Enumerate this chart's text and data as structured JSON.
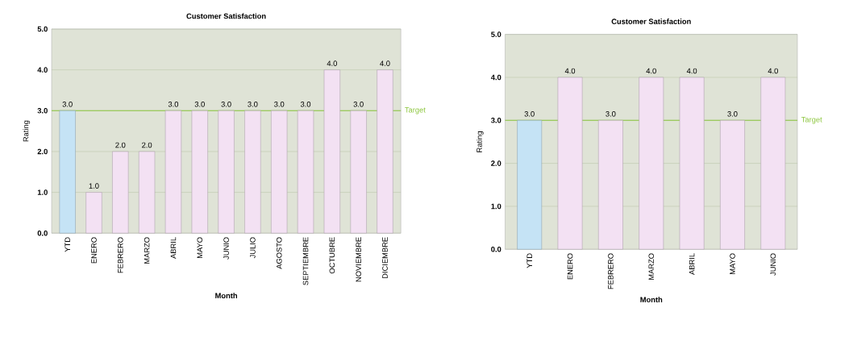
{
  "chart_data": [
    {
      "type": "bar",
      "title": "Customer Satisfaction",
      "xlabel": "Month",
      "ylabel": "Rating",
      "categories": [
        "YTD",
        "ENERO",
        "FEBRERO",
        "MARZO",
        "ABRIL",
        "MAYO",
        "JUNIO",
        "JULIO",
        "AGOSTO",
        "SEPTIEMBRE",
        "OCTUBRE",
        "NOVIEMBRE",
        "DICIEMBRE"
      ],
      "values": [
        3,
        1,
        2,
        2,
        3,
        3,
        3,
        3,
        3,
        3,
        4,
        3,
        4
      ],
      "value_labels": [
        "3.0",
        "1.0",
        "2.0",
        "2.0",
        "3.0",
        "3.0",
        "3.0",
        "3.0",
        "3.0",
        "3.0",
        "4.0",
        "3.0",
        "4.0"
      ],
      "colors": [
        "#c5e3f5",
        "#f3e1f3",
        "#f3e1f3",
        "#f3e1f3",
        "#f3e1f3",
        "#f3e1f3",
        "#f3e1f3",
        "#f3e1f3",
        "#f3e1f3",
        "#f3e1f3",
        "#f3e1f3",
        "#f3e1f3",
        "#f3e1f3"
      ],
      "ylim": [
        0,
        5
      ],
      "yticks": [
        {
          "value": 0,
          "label": "0.0"
        },
        {
          "value": 1,
          "label": "1.0"
        },
        {
          "value": 2,
          "label": "2.0"
        },
        {
          "value": 3,
          "label": "3.0"
        },
        {
          "value": 4,
          "label": "4.0"
        },
        {
          "value": 5,
          "label": "5.0"
        }
      ],
      "grid": "y",
      "ref_lines": [
        {
          "axis": "y",
          "value": 3,
          "label": "Target",
          "color": "#8dc63f"
        }
      ]
    },
    {
      "type": "bar",
      "title": "Customer Satisfaction",
      "xlabel": "Month",
      "ylabel": "Rating",
      "categories": [
        "YTD",
        "ENERO",
        "FEBRERO",
        "MARZO",
        "ABRIL",
        "MAYO",
        "JUNIO"
      ],
      "values": [
        3,
        4,
        3,
        4,
        4,
        3,
        4
      ],
      "value_labels": [
        "3.0",
        "4.0",
        "3.0",
        "4.0",
        "4.0",
        "3.0",
        "4.0"
      ],
      "colors": [
        "#c5e3f5",
        "#f3e1f3",
        "#f3e1f3",
        "#f3e1f3",
        "#f3e1f3",
        "#f3e1f3",
        "#f3e1f3"
      ],
      "ylim": [
        0,
        5
      ],
      "yticks": [
        {
          "value": 0,
          "label": "0.0"
        },
        {
          "value": 1,
          "label": "1.0"
        },
        {
          "value": 2,
          "label": "2.0"
        },
        {
          "value": 3,
          "label": "3.0"
        },
        {
          "value": 4,
          "label": "4.0"
        },
        {
          "value": 5,
          "label": "5.0"
        }
      ],
      "grid": "y",
      "ref_lines": [
        {
          "axis": "y",
          "value": 3,
          "label": "Target",
          "color": "#8dc63f"
        }
      ]
    }
  ]
}
